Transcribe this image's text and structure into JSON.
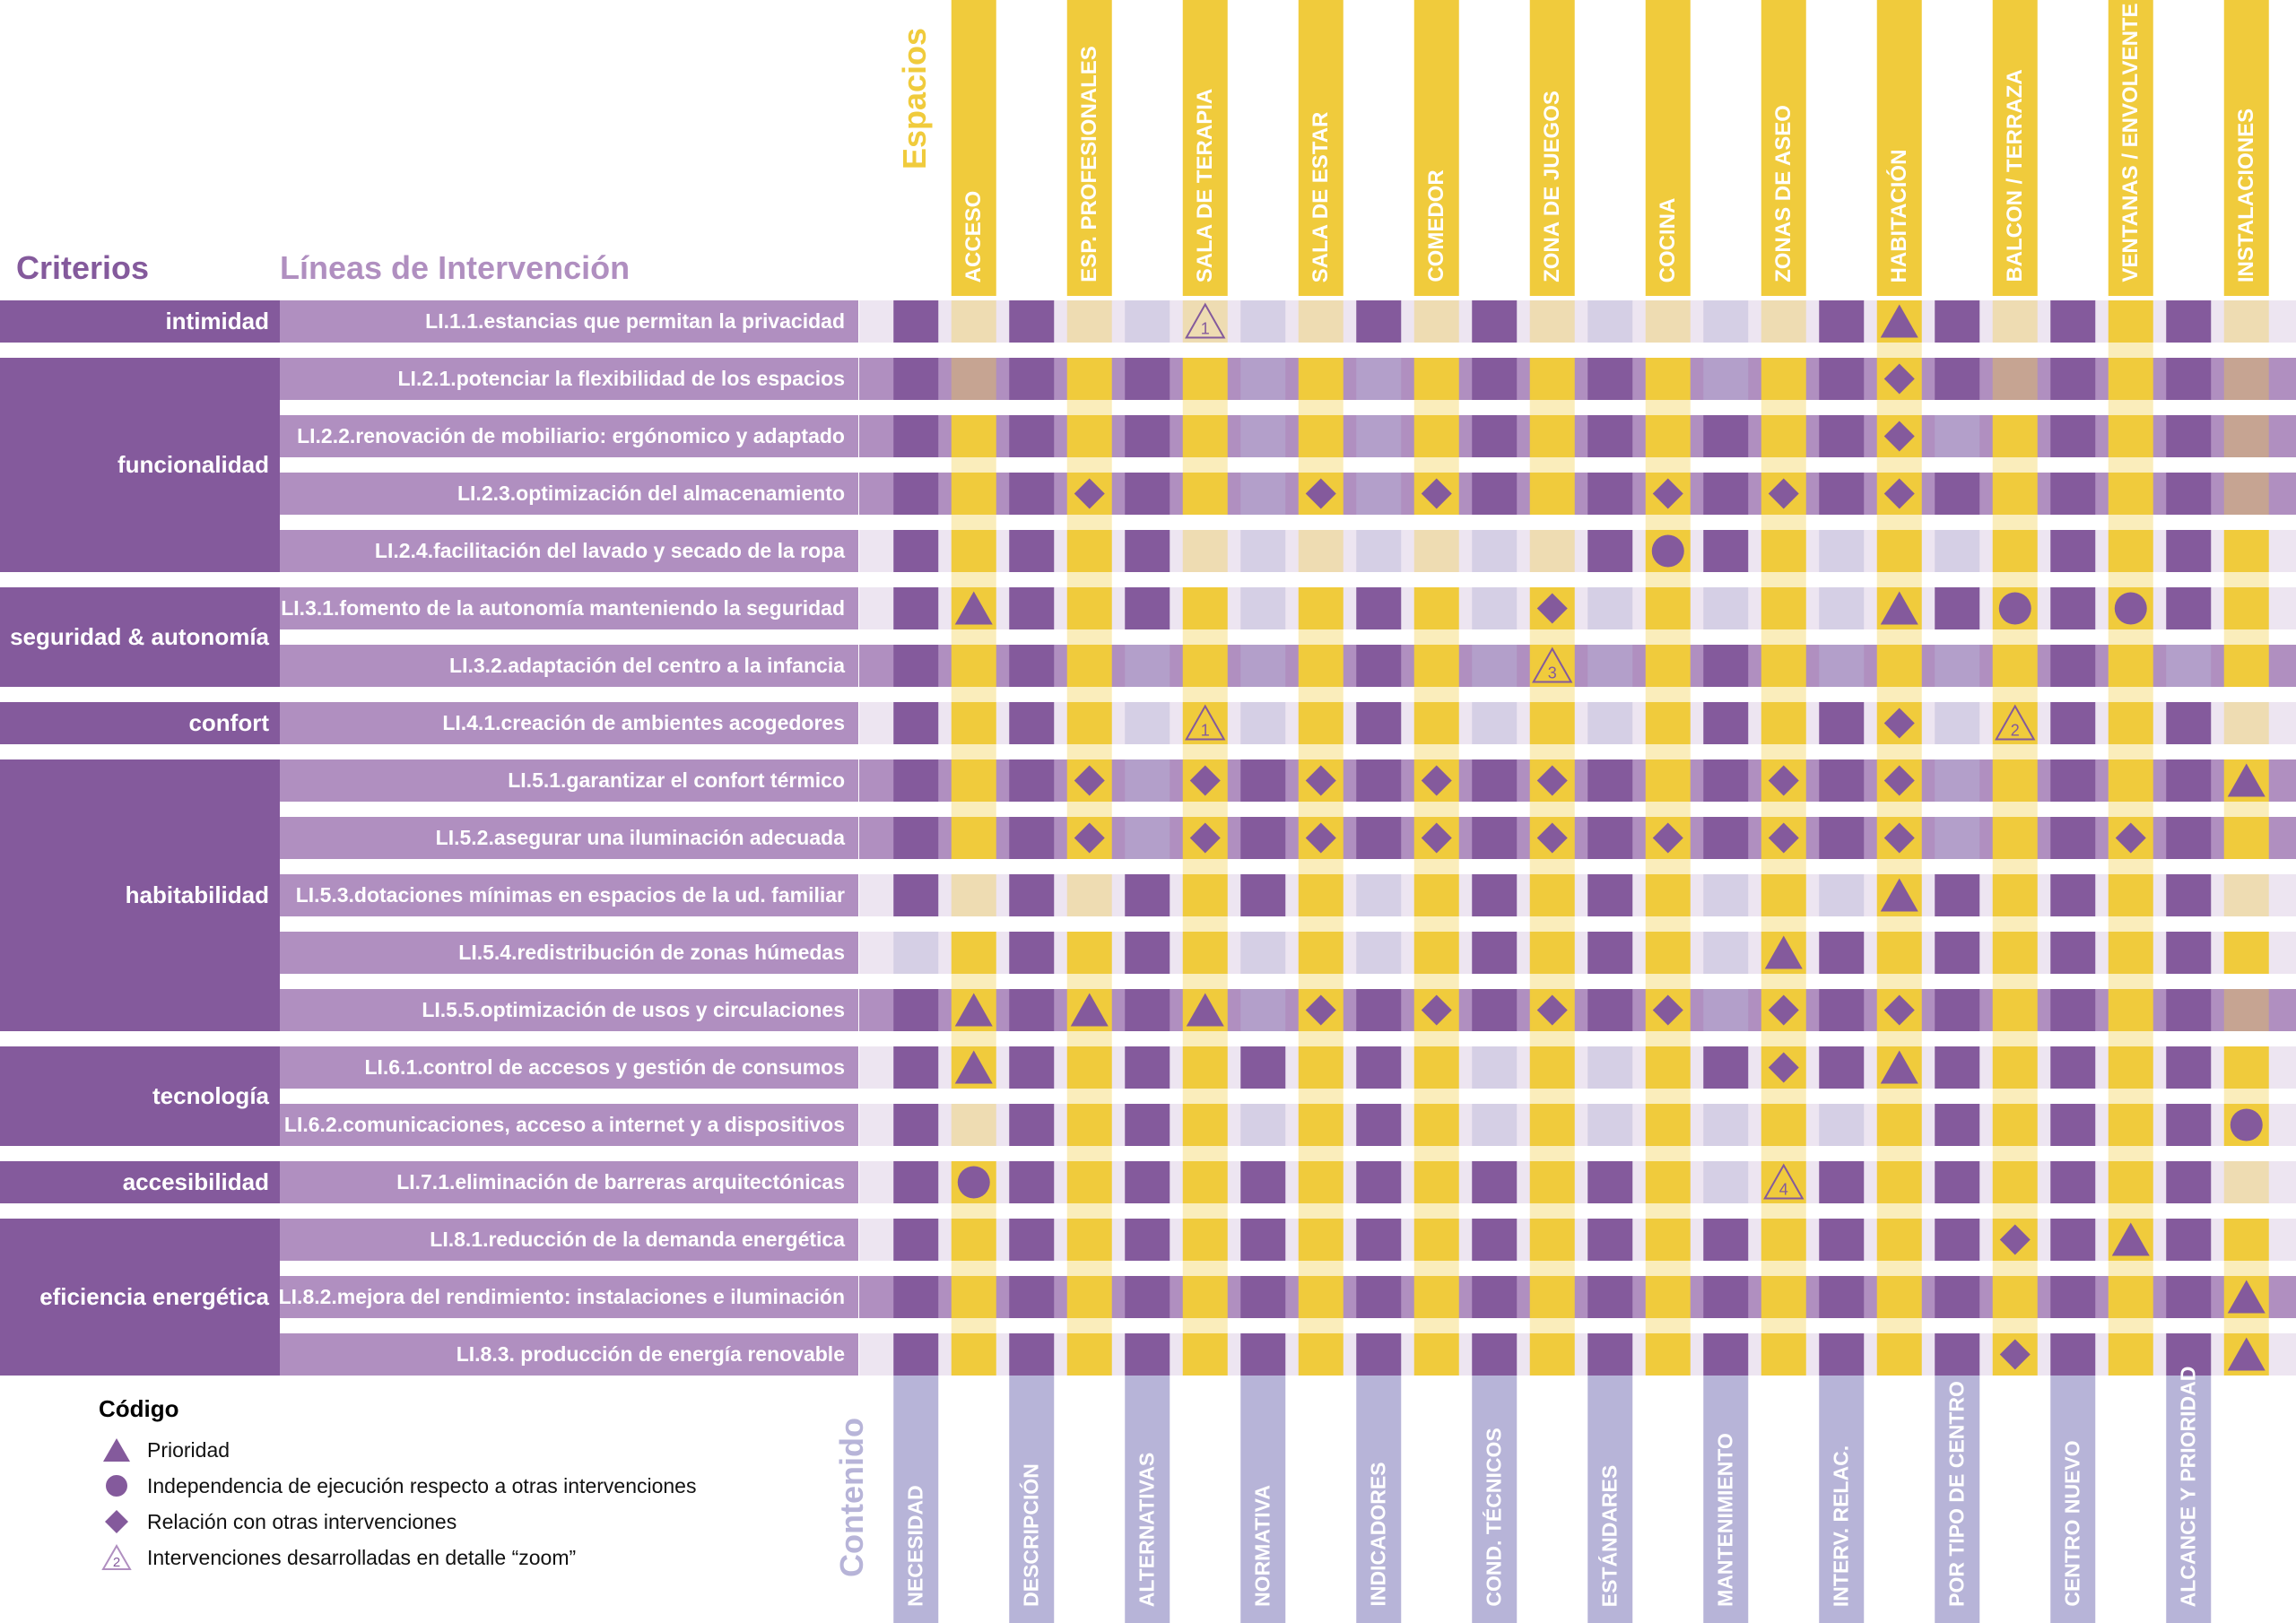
{
  "headers": {
    "criterios": "Criterios",
    "lineas": "Líneas de Intervención",
    "espacios": "Espacios",
    "contenido": "Contenido"
  },
  "colors": {
    "purple": "#845a9c",
    "lilac": "#b08fc0",
    "light_lilac": "#ede5f1",
    "yellow": "#f0cb3c",
    "periwinkle": "#b7b4d8"
  },
  "espacios": [
    "ACCESO",
    "ESP. PROFESIONALES",
    "SALA DE TERAPIA",
    "SALA DE ESTAR",
    "COMEDOR",
    "ZONA DE JUEGOS",
    "COCINA",
    "ZONAS DE ASEO",
    "HABITACIÓN",
    "BALCON / TERRAZA",
    "VENTANAS / ENVOLVENTE",
    "INSTALACIONES"
  ],
  "contenido": [
    "NECESIDAD",
    "DESCRIPCIÓN",
    "ALTERNATIVAS",
    "NORMATIVA",
    "INDICADORES",
    "COND. TÉCNICOS",
    "ESTÁNDARES",
    "MANTENIMIENTO",
    "INTERV. RELAC.",
    "POR TIPO DE  CENTRO",
    "CENTRO NUEVO",
    "ALCANCE Y PRIORIDAD"
  ],
  "criterios": [
    {
      "name": "intimidad",
      "rows": [
        0
      ]
    },
    {
      "name": "funcionalidad",
      "rows": [
        1,
        2,
        3,
        4
      ]
    },
    {
      "name": "seguridad & autonomía",
      "rows": [
        5,
        6
      ]
    },
    {
      "name": "confort",
      "rows": [
        7
      ]
    },
    {
      "name": "habitabilidad",
      "rows": [
        8,
        9,
        10,
        11,
        12
      ]
    },
    {
      "name": "tecnología",
      "rows": [
        13,
        14
      ]
    },
    {
      "name": "accesibilidad",
      "rows": [
        15
      ]
    },
    {
      "name": "eficiencia energética",
      "rows": [
        16,
        17,
        18
      ]
    }
  ],
  "lineas": [
    "LI.1.1.estancias que permitan la privacidad",
    "LI.2.1.potenciar la flexibilidad de los espacios",
    "LI.2.2.renovación de mobiliario: ergónomico y adaptado",
    "LI.2.3.optimización del almacenamiento",
    "LI.2.4.facilitación del lavado y secado de la ropa",
    "LI.3.1.fomento de la autonomía manteniendo la seguridad",
    "LI.3.2.adaptación del centro a la infancia",
    "LI.4.1.creación de ambientes acogedores",
    "LI.5.1.garantizar el confort térmico",
    "LI.5.2.asegurar una iluminación adecuada",
    "LI.5.3.dotaciones mínimas en espacios de la ud. familiar",
    "LI.5.4.redistribución de zonas húmedas",
    "LI.5.5.optimización de usos y circulaciones",
    "LI.6.1.control de accesos y gestión de consumos",
    "LI.6.2.comunicaciones, acceso a internet y a dispositivos",
    "LI.7.1.eliminación de barreras arquitectónicas",
    "LI.8.1.reducción de la demanda energética",
    "LI.8.2.mejora del rendimiento: instalaciones e iluminación",
    "LI.8.3. producción de energía renovable"
  ],
  "row_fill": [
    "light",
    "lilac",
    "lilac",
    "lilac",
    "light",
    "light",
    "lilac",
    "light",
    "lilac",
    "lilac",
    "light",
    "light",
    "lilac",
    "light",
    "light",
    "light",
    "light",
    "lilac",
    "light"
  ],
  "cells": {
    "contenido": [
      [
        1,
        1,
        0,
        0,
        1,
        1,
        0,
        0,
        1,
        1,
        1,
        1
      ],
      [
        1,
        1,
        1,
        0,
        0,
        1,
        1,
        0,
        1,
        1,
        1,
        1
      ],
      [
        1,
        1,
        1,
        0,
        0,
        1,
        1,
        1,
        1,
        0,
        1,
        1
      ],
      [
        1,
        1,
        1,
        0,
        0,
        1,
        1,
        1,
        1,
        1,
        1,
        1
      ],
      [
        1,
        1,
        1,
        0,
        0,
        0,
        1,
        1,
        0,
        0,
        1,
        1
      ],
      [
        1,
        1,
        1,
        0,
        1,
        0,
        0,
        0,
        0,
        1,
        1,
        1
      ],
      [
        1,
        1,
        0,
        0,
        1,
        0,
        0,
        1,
        0,
        0,
        1,
        0
      ],
      [
        1,
        1,
        0,
        0,
        1,
        0,
        0,
        1,
        1,
        0,
        1,
        1
      ],
      [
        1,
        1,
        0,
        1,
        1,
        1,
        1,
        1,
        1,
        0,
        1,
        1
      ],
      [
        1,
        1,
        0,
        1,
        1,
        1,
        1,
        1,
        1,
        0,
        1,
        1
      ],
      [
        1,
        1,
        1,
        1,
        0,
        1,
        1,
        0,
        0,
        1,
        1,
        1
      ],
      [
        0,
        1,
        1,
        0,
        0,
        1,
        1,
        0,
        1,
        1,
        1,
        1
      ],
      [
        1,
        1,
        1,
        0,
        1,
        1,
        1,
        0,
        1,
        1,
        1,
        1
      ],
      [
        1,
        1,
        1,
        1,
        1,
        0,
        0,
        1,
        1,
        1,
        1,
        1
      ],
      [
        1,
        1,
        1,
        0,
        1,
        0,
        0,
        0,
        0,
        1,
        1,
        1
      ],
      [
        1,
        1,
        1,
        1,
        1,
        1,
        1,
        0,
        1,
        1,
        1,
        1
      ],
      [
        1,
        1,
        1,
        1,
        1,
        1,
        1,
        1,
        1,
        1,
        1,
        1
      ],
      [
        1,
        1,
        1,
        1,
        1,
        1,
        1,
        1,
        1,
        1,
        1,
        1
      ],
      [
        1,
        1,
        1,
        1,
        1,
        1,
        1,
        1,
        1,
        1,
        1,
        1
      ]
    ],
    "espacios": [
      [
        0,
        0,
        0,
        0,
        0,
        0,
        0,
        0,
        1,
        0,
        1,
        0
      ],
      [
        0,
        1,
        1,
        1,
        1,
        1,
        1,
        1,
        1,
        0,
        1,
        0
      ],
      [
        1,
        1,
        1,
        1,
        1,
        1,
        1,
        1,
        1,
        1,
        1,
        0
      ],
      [
        1,
        1,
        1,
        1,
        1,
        1,
        1,
        1,
        1,
        1,
        1,
        0
      ],
      [
        1,
        1,
        0,
        0,
        0,
        0,
        1,
        1,
        1,
        1,
        1,
        1
      ],
      [
        1,
        1,
        1,
        1,
        1,
        1,
        1,
        1,
        1,
        1,
        1,
        1
      ],
      [
        1,
        1,
        1,
        1,
        1,
        1,
        1,
        1,
        1,
        1,
        1,
        1
      ],
      [
        1,
        1,
        1,
        1,
        1,
        1,
        1,
        1,
        1,
        1,
        1,
        0
      ],
      [
        1,
        1,
        1,
        1,
        1,
        1,
        1,
        1,
        1,
        1,
        1,
        1
      ],
      [
        1,
        1,
        1,
        1,
        1,
        1,
        1,
        1,
        1,
        1,
        1,
        1
      ],
      [
        0,
        0,
        1,
        1,
        1,
        1,
        1,
        1,
        1,
        1,
        1,
        0
      ],
      [
        1,
        1,
        1,
        1,
        1,
        1,
        1,
        1,
        1,
        1,
        1,
        1
      ],
      [
        1,
        1,
        1,
        1,
        1,
        1,
        1,
        1,
        1,
        1,
        1,
        0
      ],
      [
        1,
        1,
        1,
        1,
        1,
        1,
        1,
        1,
        1,
        1,
        1,
        1
      ],
      [
        0,
        1,
        1,
        1,
        1,
        1,
        1,
        1,
        1,
        1,
        1,
        1
      ],
      [
        1,
        1,
        1,
        1,
        1,
        1,
        1,
        1,
        1,
        1,
        1,
        0
      ],
      [
        1,
        1,
        1,
        1,
        1,
        1,
        1,
        1,
        1,
        1,
        1,
        1
      ],
      [
        1,
        1,
        1,
        1,
        1,
        1,
        1,
        1,
        1,
        1,
        1,
        1
      ],
      [
        1,
        1,
        1,
        1,
        1,
        1,
        1,
        1,
        1,
        1,
        1,
        1
      ]
    ]
  },
  "symbols": [
    {
      "row": 0,
      "col": 2,
      "type": "zoom",
      "label": "1"
    },
    {
      "row": 0,
      "col": 8,
      "type": "triangle"
    },
    {
      "row": 1,
      "col": 8,
      "type": "diamond"
    },
    {
      "row": 2,
      "col": 8,
      "type": "diamond"
    },
    {
      "row": 3,
      "col": 1,
      "type": "diamond"
    },
    {
      "row": 3,
      "col": 3,
      "type": "diamond"
    },
    {
      "row": 3,
      "col": 4,
      "type": "diamond"
    },
    {
      "row": 3,
      "col": 6,
      "type": "diamond"
    },
    {
      "row": 3,
      "col": 7,
      "type": "diamond"
    },
    {
      "row": 3,
      "col": 8,
      "type": "diamond"
    },
    {
      "row": 4,
      "col": 6,
      "type": "circle"
    },
    {
      "row": 5,
      "col": 0,
      "type": "triangle"
    },
    {
      "row": 5,
      "col": 5,
      "type": "diamond"
    },
    {
      "row": 5,
      "col": 8,
      "type": "triangle"
    },
    {
      "row": 5,
      "col": 9,
      "type": "circle"
    },
    {
      "row": 5,
      "col": 10,
      "type": "circle"
    },
    {
      "row": 6,
      "col": 5,
      "type": "zoom",
      "label": "3"
    },
    {
      "row": 7,
      "col": 2,
      "type": "zoom",
      "label": "1"
    },
    {
      "row": 7,
      "col": 8,
      "type": "diamond"
    },
    {
      "row": 7,
      "col": 9,
      "type": "zoom",
      "label": "2"
    },
    {
      "row": 8,
      "col": 1,
      "type": "diamond"
    },
    {
      "row": 8,
      "col": 2,
      "type": "diamond"
    },
    {
      "row": 8,
      "col": 3,
      "type": "diamond"
    },
    {
      "row": 8,
      "col": 4,
      "type": "diamond"
    },
    {
      "row": 8,
      "col": 5,
      "type": "diamond"
    },
    {
      "row": 8,
      "col": 7,
      "type": "diamond"
    },
    {
      "row": 8,
      "col": 8,
      "type": "diamond"
    },
    {
      "row": 8,
      "col": 11,
      "type": "triangle"
    },
    {
      "row": 9,
      "col": 1,
      "type": "diamond"
    },
    {
      "row": 9,
      "col": 2,
      "type": "diamond"
    },
    {
      "row": 9,
      "col": 3,
      "type": "diamond"
    },
    {
      "row": 9,
      "col": 4,
      "type": "diamond"
    },
    {
      "row": 9,
      "col": 5,
      "type": "diamond"
    },
    {
      "row": 9,
      "col": 6,
      "type": "diamond"
    },
    {
      "row": 9,
      "col": 7,
      "type": "diamond"
    },
    {
      "row": 9,
      "col": 8,
      "type": "diamond"
    },
    {
      "row": 9,
      "col": 10,
      "type": "diamond"
    },
    {
      "row": 10,
      "col": 8,
      "type": "triangle"
    },
    {
      "row": 11,
      "col": 7,
      "type": "triangle"
    },
    {
      "row": 12,
      "col": 0,
      "type": "triangle"
    },
    {
      "row": 12,
      "col": 1,
      "type": "triangle"
    },
    {
      "row": 12,
      "col": 2,
      "type": "triangle"
    },
    {
      "row": 12,
      "col": 3,
      "type": "diamond"
    },
    {
      "row": 12,
      "col": 4,
      "type": "diamond"
    },
    {
      "row": 12,
      "col": 5,
      "type": "diamond"
    },
    {
      "row": 12,
      "col": 6,
      "type": "diamond"
    },
    {
      "row": 12,
      "col": 7,
      "type": "diamond"
    },
    {
      "row": 12,
      "col": 8,
      "type": "diamond"
    },
    {
      "row": 13,
      "col": 0,
      "type": "triangle"
    },
    {
      "row": 13,
      "col": 7,
      "type": "diamond"
    },
    {
      "row": 13,
      "col": 8,
      "type": "triangle"
    },
    {
      "row": 14,
      "col": 11,
      "type": "circle"
    },
    {
      "row": 15,
      "col": 0,
      "type": "circle"
    },
    {
      "row": 15,
      "col": 7,
      "type": "zoom",
      "label": "4"
    },
    {
      "row": 16,
      "col": 9,
      "type": "diamond"
    },
    {
      "row": 16,
      "col": 10,
      "type": "triangle"
    },
    {
      "row": 17,
      "col": 11,
      "type": "triangle"
    },
    {
      "row": 18,
      "col": 9,
      "type": "diamond"
    },
    {
      "row": 18,
      "col": 11,
      "type": "triangle"
    }
  ],
  "legend": {
    "title": "Código",
    "items": [
      {
        "icon": "triangle",
        "label": "Prioridad"
      },
      {
        "icon": "circle",
        "label": "Independencia de ejecución respecto a otras intervenciones"
      },
      {
        "icon": "diamond",
        "label": "Relación con otras intervenciones"
      },
      {
        "icon": "zoom",
        "label": "Intervenciones desarrolladas en detalle “zoom”",
        "zoom_number": "2"
      }
    ]
  }
}
